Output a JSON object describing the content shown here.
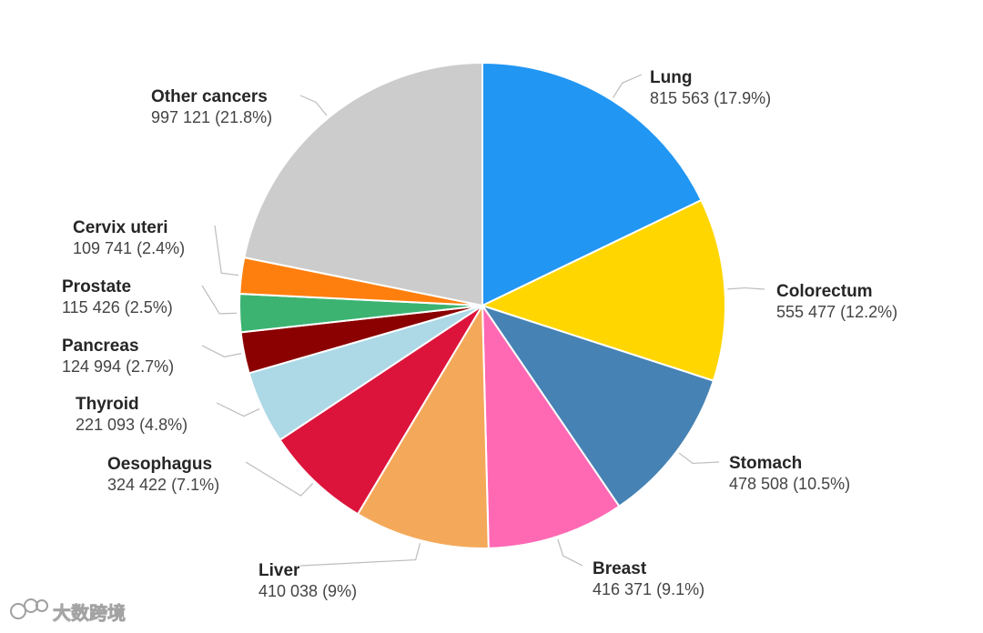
{
  "chart_data": {
    "type": "pie",
    "start_angle_deg": 0,
    "direction": "clockwise",
    "slices": [
      {
        "name": "Lung",
        "value": 815563,
        "label": "815 563 (17.9%)",
        "color": "#2196F3",
        "side": "right"
      },
      {
        "name": "Colorectum",
        "value": 555477,
        "label": "555 477 (12.2%)",
        "color": "#FFD600",
        "side": "right"
      },
      {
        "name": "Stomach",
        "value": 478508,
        "label": "478 508 (10.5%)",
        "color": "#4682B4",
        "side": "right"
      },
      {
        "name": "Breast",
        "value": 416371,
        "label": "416 371 (9.1%)",
        "color": "#FF69B4",
        "side": "right"
      },
      {
        "name": "Liver",
        "value": 410038,
        "label": "410 038 (9%)",
        "color": "#F4A95A",
        "side": "left"
      },
      {
        "name": "Oesophagus",
        "value": 324422,
        "label": "324 422 (7.1%)",
        "color": "#DC143C",
        "side": "left"
      },
      {
        "name": "Thyroid",
        "value": 221093,
        "label": "221 093 (4.8%)",
        "color": "#ADD8E6",
        "side": "left"
      },
      {
        "name": "Pancreas",
        "value": 124994,
        "label": "124 994 (2.7%)",
        "color": "#8B0000",
        "side": "left"
      },
      {
        "name": "Prostate",
        "value": 115426,
        "label": "115 426 (2.5%)",
        "color": "#3CB371",
        "side": "left"
      },
      {
        "name": "Cervix uteri",
        "value": 109741,
        "label": "109 741 (2.4%)",
        "color": "#FF7F0E",
        "side": "left"
      },
      {
        "name": "Other cancers",
        "value": 997121,
        "label": "997 121 (21.8%)",
        "color": "#CCCCCC",
        "side": "left"
      }
    ]
  },
  "watermark": {
    "text": "大数跨境",
    "icon": "watermark-logo-icon"
  }
}
